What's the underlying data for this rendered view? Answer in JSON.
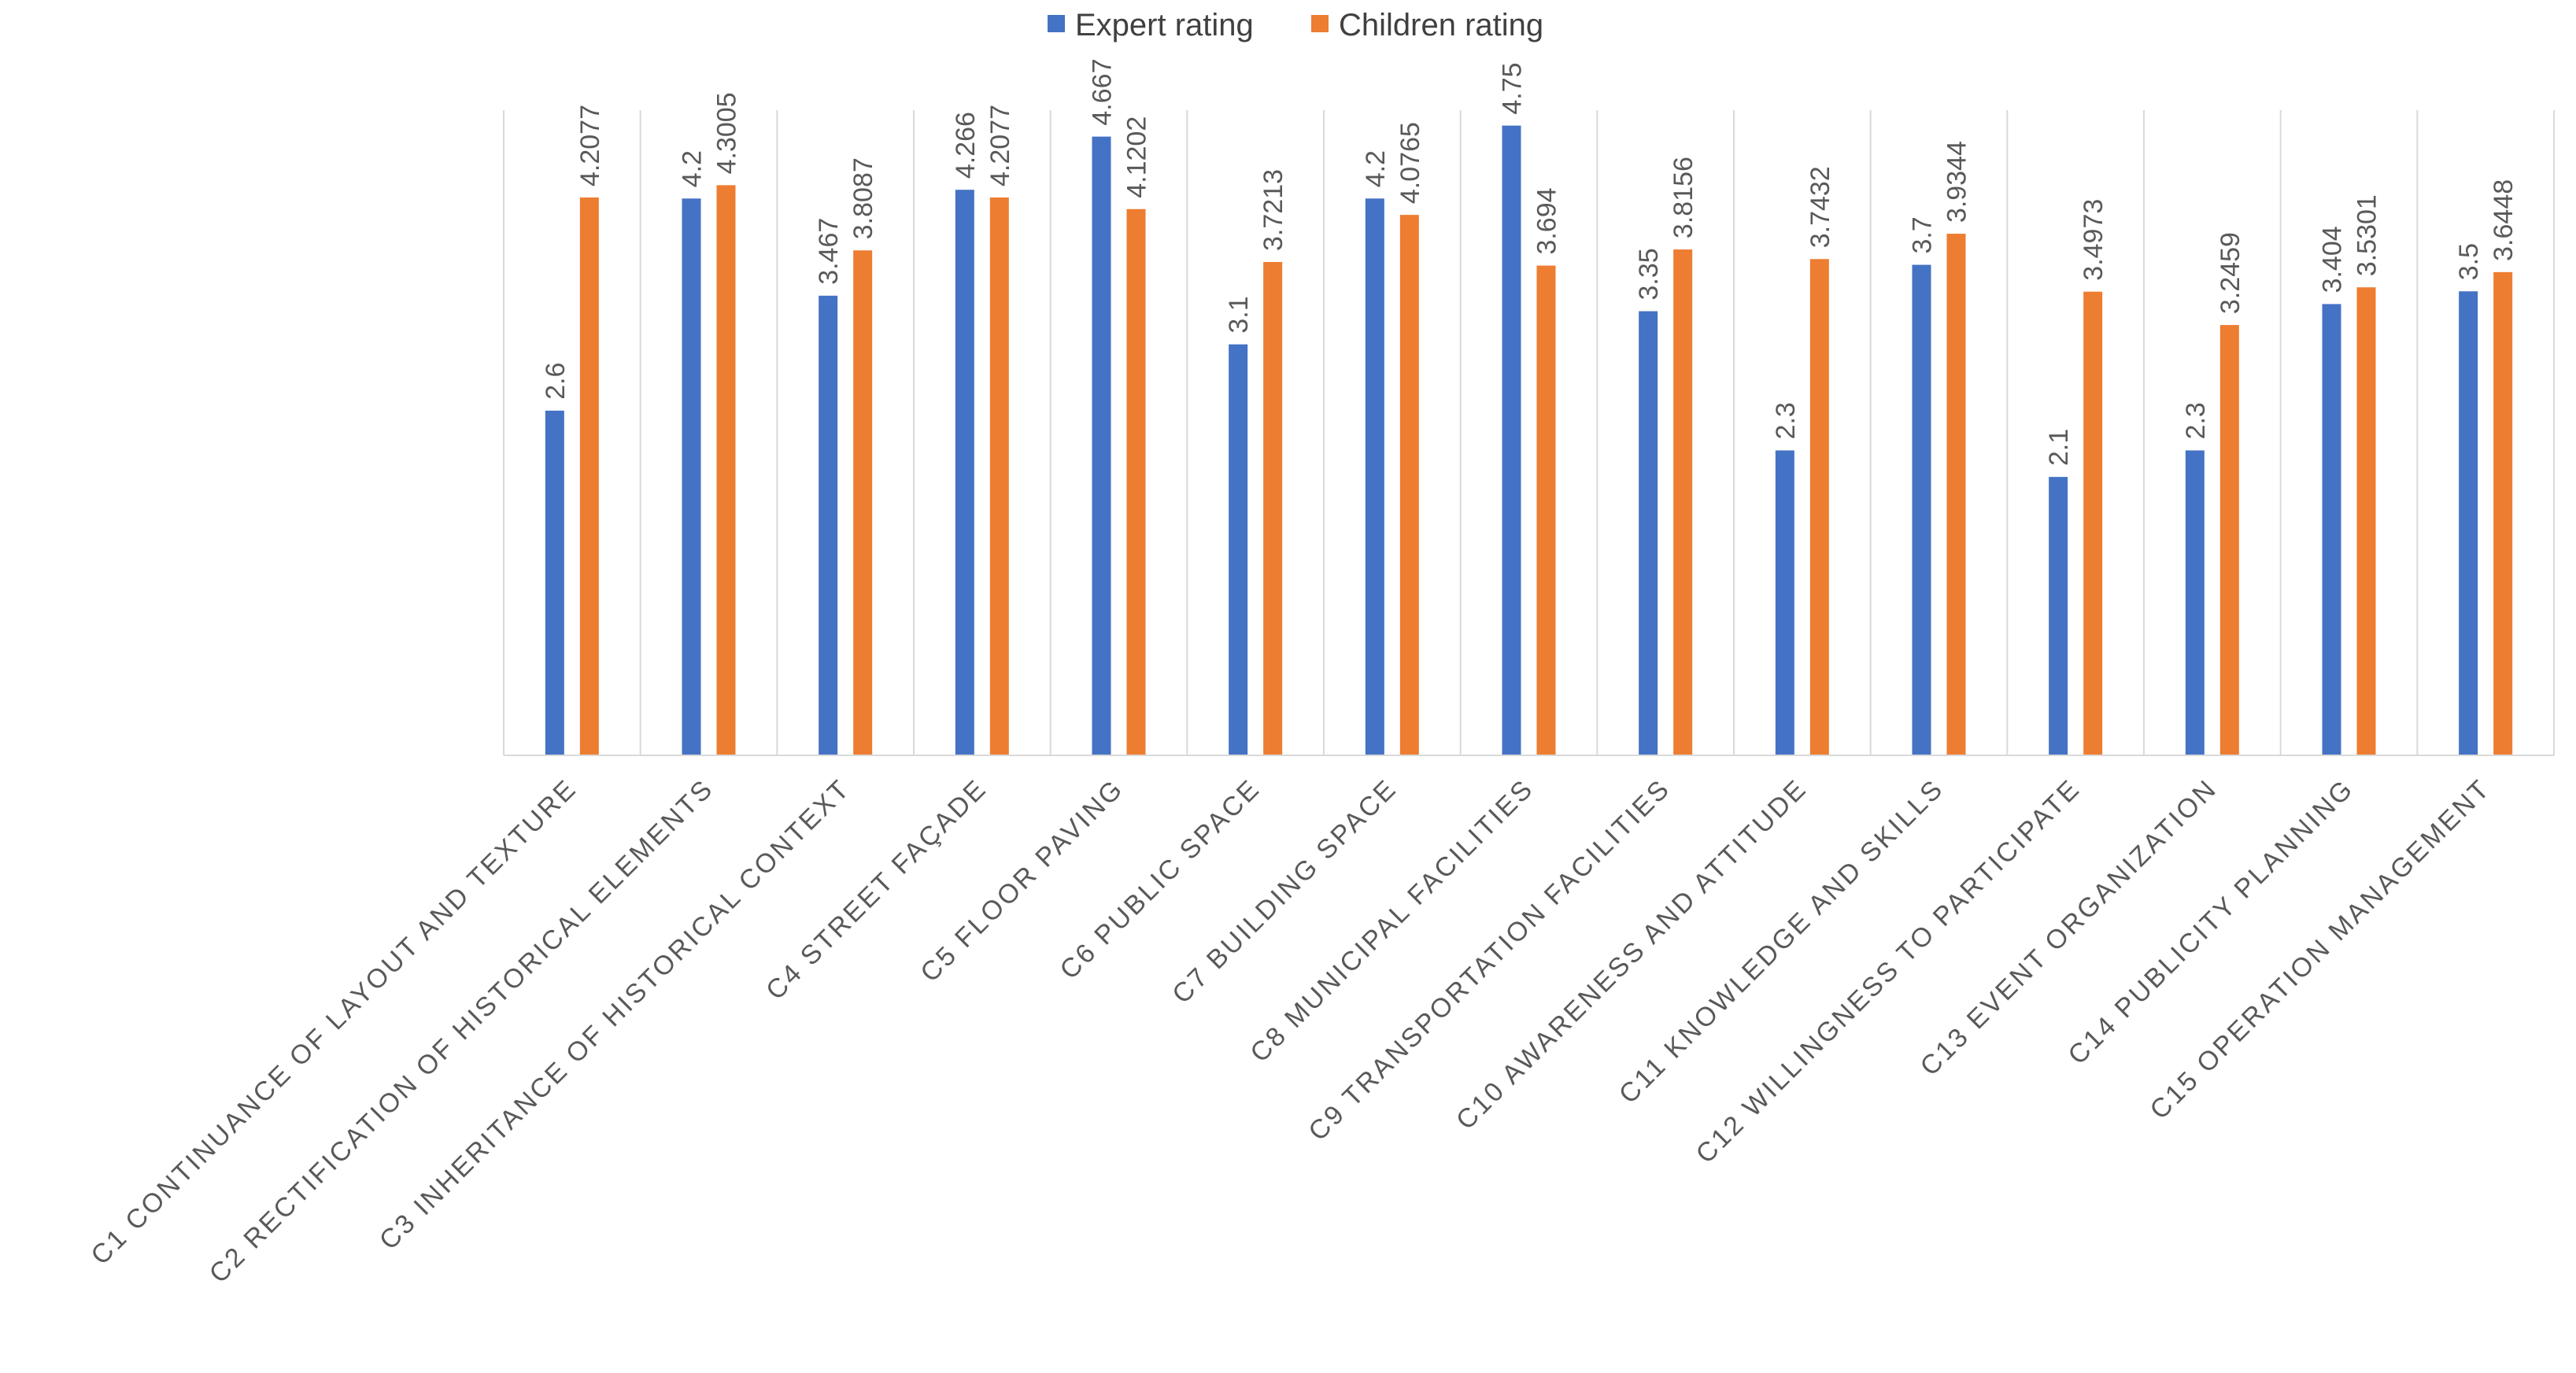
{
  "chart_data": {
    "type": "bar",
    "title": "",
    "xlabel": "",
    "ylabel": "",
    "ylim": [
      0,
      5
    ],
    "grid": false,
    "legend": "top-center",
    "categories": [
      "C1 CONTINUANCE OF LAYOUT AND TEXTURE",
      "C2 RECTIFICATION OF HISTORICAL ELEMENTS",
      "C3 INHERITANCE OF HISTORICAL CONTEXT",
      "C4 STREET FAÇADE",
      "C5 FLOOR PAVING",
      "C6 PUBLIC SPACE",
      "C7 BUILDING SPACE",
      "C8  MUNICIPAL FACILITIES",
      "C9  TRANSPORTATION FACILITIES",
      "C10 AWARENESS AND ATTITUDE",
      "C11 KNOWLEDGE AND SKILLS",
      "C12 WILLINGNESS TO PARTICIPATE",
      "C13 EVENT ORGANIZATION",
      "C14 PUBLICITY PLANNING",
      "C15 OPERATION MANAGEMENT"
    ],
    "series": [
      {
        "name": "Expert rating",
        "color": "#4472C4",
        "values": [
          2.6,
          4.2,
          3.467,
          4.266,
          4.667,
          3.1,
          4.2,
          4.75,
          3.35,
          2.3,
          3.7,
          2.1,
          2.3,
          3.404,
          3.5
        ],
        "labels": [
          "2.6",
          "4.2",
          "3.467",
          "4.266",
          "4.667",
          "3.1",
          "4.2",
          "4.75",
          "3.35",
          "2.3",
          "3.7",
          "2.1",
          "2.3",
          "3.404",
          "3.5"
        ]
      },
      {
        "name": "Children rating",
        "color": "#ED7D31",
        "values": [
          4.2077,
          4.3005,
          3.8087,
          4.2077,
          4.1202,
          3.7213,
          4.0765,
          3.694,
          3.8156,
          3.7432,
          3.9344,
          3.4973,
          3.2459,
          3.5301,
          3.6448
        ],
        "labels": [
          "4.2077",
          "4.3005",
          "3.8087",
          "4.2077",
          "4.1202",
          "3.7213",
          "4.0765",
          "3.694",
          "3.8156",
          "3.7432",
          "3.9344",
          "3.4973",
          "3.2459",
          "3.5301",
          "3.6448"
        ]
      }
    ]
  }
}
